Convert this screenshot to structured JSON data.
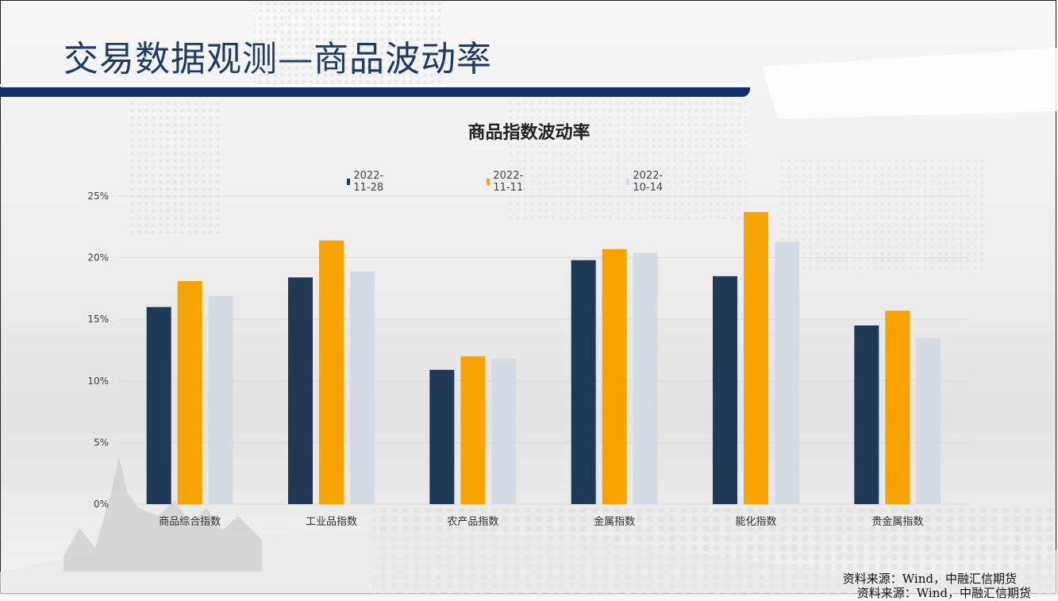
{
  "page": {
    "title": "交易数据观测—商品波动率",
    "source": "资料来源：Wind，中融汇信期货"
  },
  "colors": {
    "title_text": "#1f3c66",
    "title_bar": "#13306e",
    "series": [
      "#1f3a57",
      "#f8a400",
      "#d5dbe3"
    ],
    "grid": "#d9d9d9"
  },
  "chart_data": {
    "type": "bar",
    "title": "商品指数波动率",
    "categories": [
      "商品综合指数",
      "工业品指数",
      "农产品指数",
      "金属指数",
      "能化指数",
      "贵金属指数"
    ],
    "series": [
      {
        "name": "2022-11-28",
        "values": [
          16.0,
          18.4,
          10.9,
          19.8,
          18.5,
          14.5
        ]
      },
      {
        "name": "2022-11-11",
        "values": [
          18.1,
          21.4,
          12.0,
          20.7,
          23.7,
          15.7
        ]
      },
      {
        "name": "2022-10-14",
        "values": [
          16.9,
          18.9,
          11.8,
          20.4,
          21.3,
          13.5
        ]
      }
    ],
    "ylim": [
      0,
      25
    ],
    "yticks": [
      "0%",
      "5%",
      "10%",
      "15%",
      "20%",
      "25%"
    ],
    "ytick_values": [
      0,
      5,
      10,
      15,
      20,
      25
    ],
    "grid": true,
    "legend_position": "top"
  }
}
